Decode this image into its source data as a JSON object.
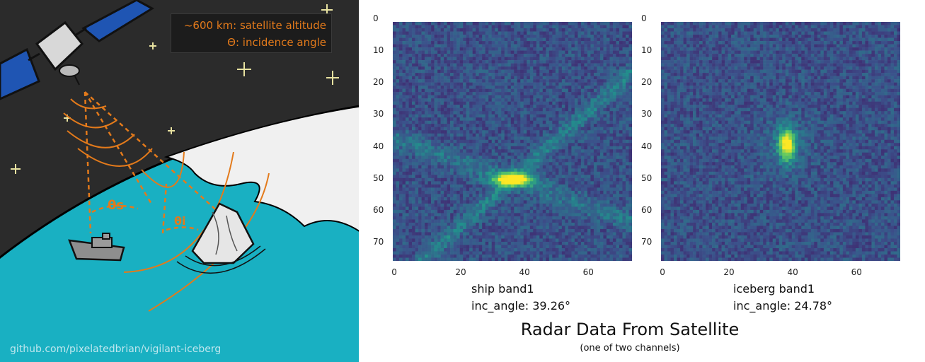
{
  "illustration": {
    "legend_line1": "~600 km: satellite altitude",
    "legend_line2": "Θ: incidence angle",
    "theta_ship": "θs",
    "theta_iceberg": "θi",
    "github_text": "github.com/pixelatedbrian/vigilant-iceberg",
    "colors": {
      "space": "#2b2b2b",
      "ocean": "#19b0c2",
      "ice": "#f0f0f0",
      "accent": "#e37a1b",
      "panel": "#1f55b3"
    }
  },
  "figure": {
    "title": "Radar Data From Satellite",
    "subtitle": "(one of two channels)"
  },
  "chart_data": [
    {
      "type": "heatmap",
      "colormap": "viridis",
      "rows": 75,
      "cols": 75,
      "x_ticks": [
        "0",
        "20",
        "40",
        "60"
      ],
      "y_ticks": [
        "0",
        "10",
        "20",
        "30",
        "40",
        "50",
        "60",
        "70"
      ],
      "caption_line1": "ship band1",
      "caption_line2": "inc_angle: 39.26°",
      "bright_spot_center": [
        37,
        49
      ]
    },
    {
      "type": "heatmap",
      "colormap": "viridis",
      "rows": 75,
      "cols": 75,
      "x_ticks": [
        "0",
        "20",
        "40",
        "60"
      ],
      "y_ticks": [
        "0",
        "10",
        "20",
        "30",
        "40",
        "50",
        "60",
        "70"
      ],
      "caption_line1": "iceberg band1",
      "caption_line2": "inc_angle: 24.78°",
      "bright_spot_center": [
        39,
        38
      ]
    }
  ]
}
